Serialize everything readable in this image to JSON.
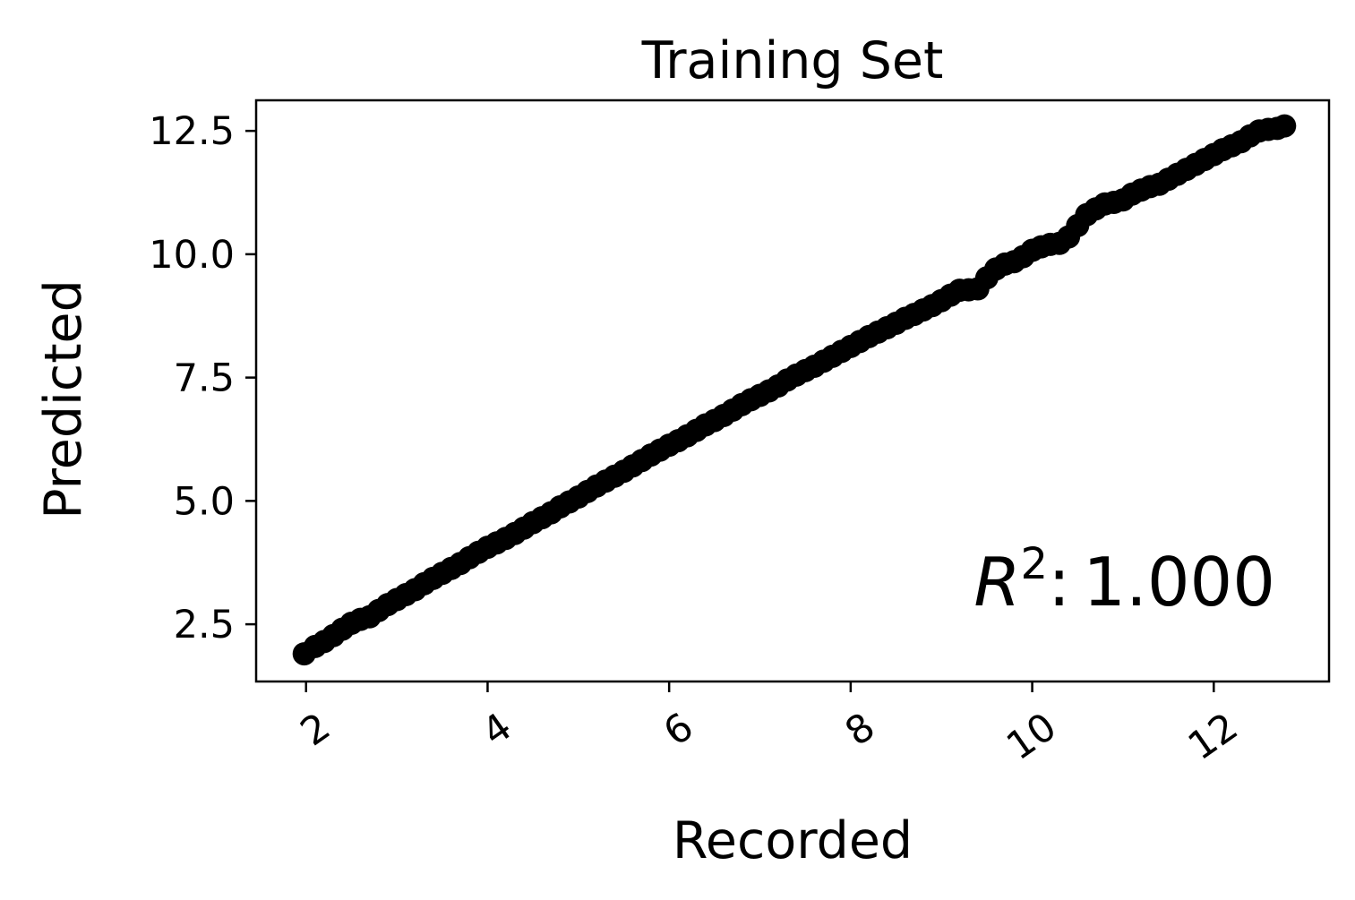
{
  "chart_data": {
    "type": "scatter",
    "title": "Training Set",
    "xlabel": "Recorded",
    "ylabel": "Predicted",
    "xlim": [
      1.45,
      13.27
    ],
    "ylim": [
      1.34,
      13.12
    ],
    "xticks": [
      2,
      4,
      6,
      8,
      10,
      12
    ],
    "xtick_labels": [
      "2",
      "4",
      "6",
      "8",
      "10",
      "12"
    ],
    "xtick_rotation_deg": 35,
    "yticks": [
      2.5,
      5.0,
      7.5,
      10.0,
      12.5
    ],
    "ytick_labels": [
      "2.5",
      "5.0",
      "7.5",
      "10.0",
      "12.5"
    ],
    "grid": false,
    "legend": "none",
    "marker_color": "#000000",
    "annotation": {
      "label": "R",
      "superscript": "2",
      "separator": ":",
      "value": "1.000",
      "position": "bottom-right"
    },
    "series": [
      {
        "x": [
          1.98,
          2.1,
          2.2,
          2.3,
          2.4,
          2.5,
          2.6,
          2.7,
          2.8,
          2.9,
          3.0,
          3.1,
          3.2,
          3.3,
          3.4,
          3.5,
          3.6,
          3.7,
          3.8,
          3.9,
          4.0,
          4.1,
          4.2,
          4.3,
          4.4,
          4.5,
          4.6,
          4.7,
          4.8,
          4.9,
          5.0,
          5.1,
          5.2,
          5.3,
          5.4,
          5.5,
          5.6,
          5.7,
          5.8,
          5.9,
          6.0,
          6.1,
          6.2,
          6.3,
          6.4,
          6.5,
          6.6,
          6.7,
          6.8,
          6.9,
          7.0,
          7.1,
          7.2,
          7.3,
          7.4,
          7.5,
          7.6,
          7.7,
          7.8,
          7.9,
          8.0,
          8.1,
          8.2,
          8.3,
          8.4,
          8.5,
          8.6,
          8.7,
          8.8,
          8.9,
          9.0,
          9.1,
          9.2,
          9.3,
          9.4,
          9.5,
          9.6,
          9.7,
          9.8,
          9.9,
          10.0,
          10.1,
          10.2,
          10.3,
          10.4,
          10.5,
          10.6,
          10.7,
          10.8,
          10.9,
          11.0,
          11.1,
          11.2,
          11.3,
          11.4,
          11.5,
          11.6,
          11.7,
          11.8,
          11.9,
          12.0,
          12.1,
          12.2,
          12.3,
          12.4,
          12.5,
          12.6,
          12.7,
          12.78
        ],
        "y": [
          1.9,
          2.05,
          2.15,
          2.27,
          2.4,
          2.52,
          2.6,
          2.65,
          2.78,
          2.9,
          3.0,
          3.1,
          3.2,
          3.32,
          3.43,
          3.53,
          3.63,
          3.73,
          3.85,
          3.96,
          4.06,
          4.15,
          4.24,
          4.34,
          4.45,
          4.56,
          4.66,
          4.76,
          4.88,
          4.98,
          5.08,
          5.19,
          5.3,
          5.4,
          5.5,
          5.6,
          5.71,
          5.82,
          5.93,
          6.03,
          6.13,
          6.22,
          6.32,
          6.43,
          6.54,
          6.63,
          6.73,
          6.84,
          6.95,
          7.05,
          7.14,
          7.23,
          7.33,
          7.45,
          7.55,
          7.64,
          7.73,
          7.83,
          7.93,
          8.03,
          8.13,
          8.23,
          8.33,
          8.42,
          8.51,
          8.6,
          8.7,
          8.78,
          8.87,
          8.96,
          9.06,
          9.17,
          9.27,
          9.28,
          9.3,
          9.52,
          9.7,
          9.8,
          9.85,
          9.95,
          10.08,
          10.15,
          10.2,
          10.22,
          10.35,
          10.58,
          10.8,
          10.92,
          11.02,
          11.05,
          11.1,
          11.22,
          11.3,
          11.37,
          11.42,
          11.52,
          11.62,
          11.72,
          11.82,
          11.92,
          12.02,
          12.12,
          12.2,
          12.28,
          12.4,
          12.5,
          12.53,
          12.55,
          12.6
        ]
      }
    ]
  }
}
